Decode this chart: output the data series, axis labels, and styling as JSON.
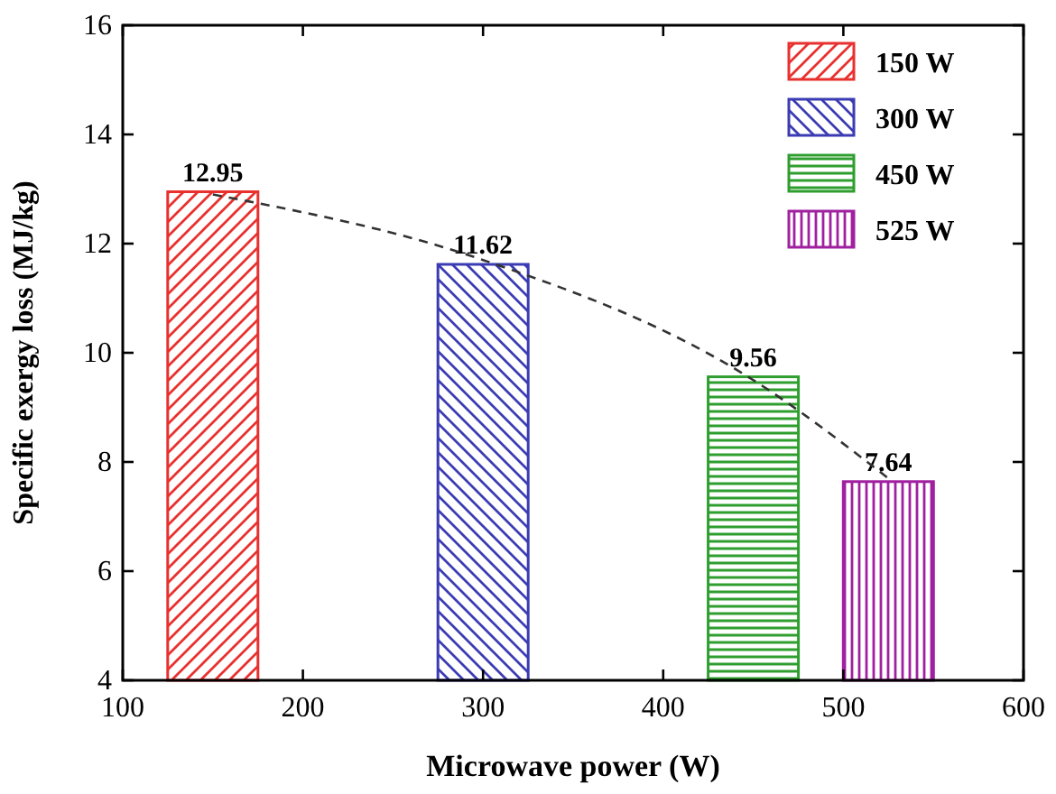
{
  "chart_data": {
    "type": "bar",
    "xlabel": "Microwave power (W)",
    "ylabel": "Specific exergy loss (MJ/kg)",
    "xlim": [
      100,
      600
    ],
    "xticks": [
      100,
      200,
      300,
      400,
      500,
      600
    ],
    "ylim": [
      4,
      16
    ],
    "yticks": [
      4,
      6,
      8,
      10,
      12,
      14,
      16
    ],
    "legend": "top right",
    "grid": false,
    "series": [
      {
        "name": "150 W",
        "color": "#e8312f",
        "x": [
          150
        ],
        "values": [
          12.95
        ],
        "value_labels": [
          "12.95"
        ]
      },
      {
        "name": "300 W",
        "color": "#3b3bb3",
        "x": [
          300
        ],
        "values": [
          11.62
        ],
        "value_labels": [
          "11.62"
        ]
      },
      {
        "name": "450 W",
        "color": "#2e9e2e",
        "x": [
          450
        ],
        "values": [
          9.56
        ],
        "value_labels": [
          "9.56"
        ]
      },
      {
        "name": "525 W",
        "color": "#a020a0",
        "x": [
          525
        ],
        "values": [
          7.64
        ],
        "value_labels": [
          "7.64"
        ]
      },
      {
        "type": "line",
        "color": "#333333",
        "line_style": "dashed",
        "marker": "none",
        "x": [
          150,
          300,
          450,
          525
        ],
        "values": [
          12.9,
          11.7,
          9.5,
          7.7
        ]
      }
    ]
  }
}
